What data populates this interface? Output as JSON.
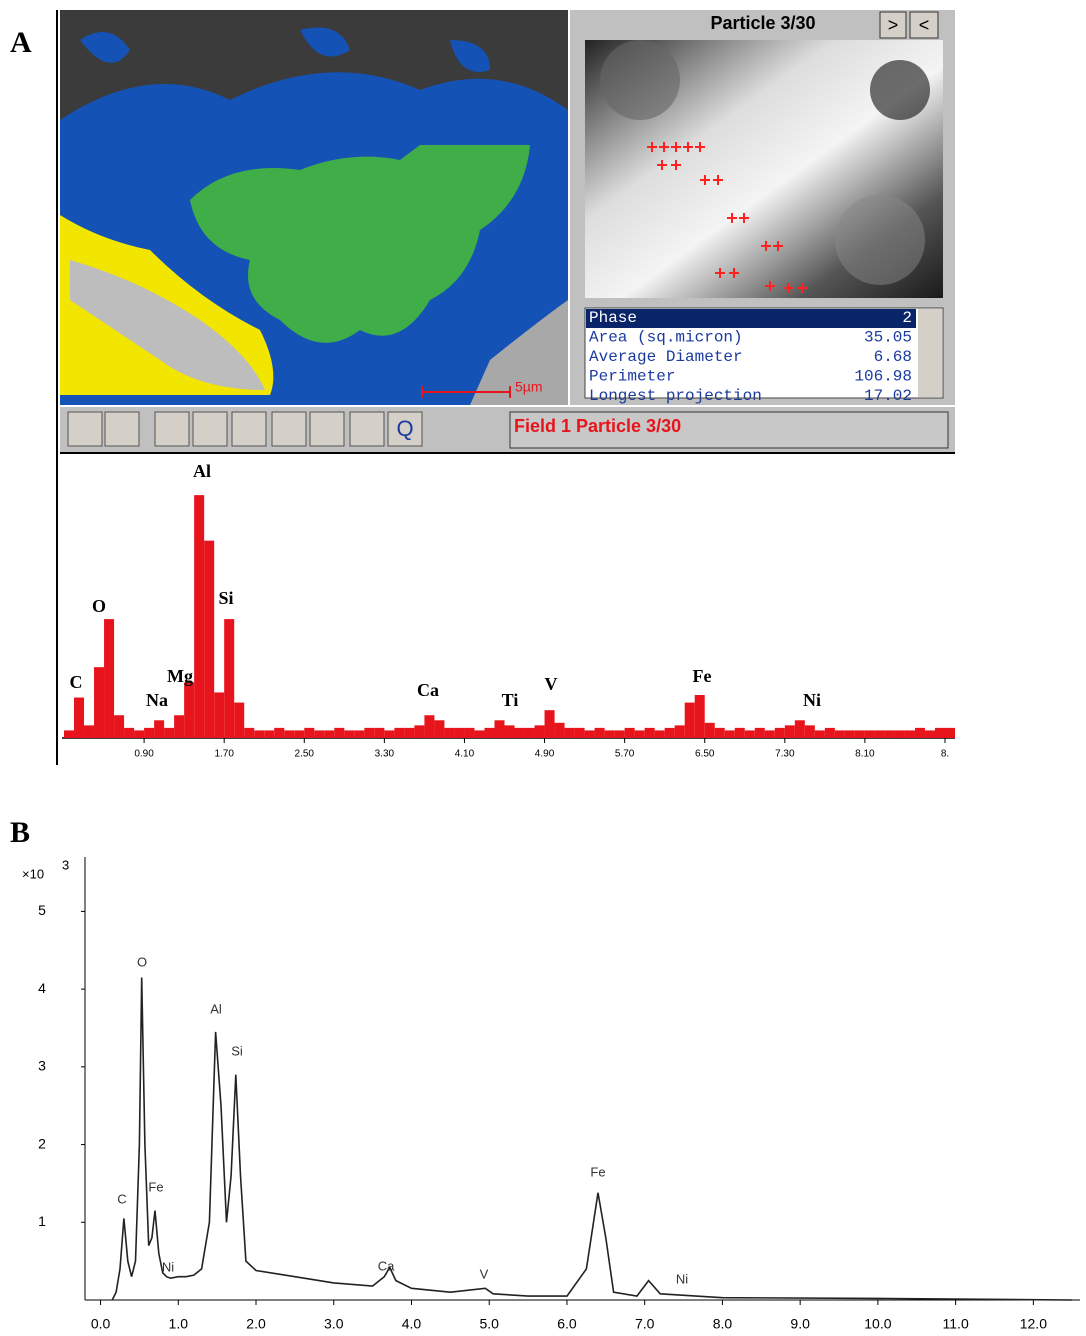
{
  "panel_labels": [
    "A",
    "B"
  ],
  "particle_view": {
    "title": "Particle 3/30",
    "next": ">",
    "prev": "<"
  },
  "properties": [
    [
      "Phase",
      "2"
    ],
    [
      "Area (sq.micron)",
      "35.05"
    ],
    [
      "Average Diameter",
      "6.68"
    ],
    [
      "Perimeter",
      "106.98"
    ],
    [
      "Longest projection",
      "17.02"
    ]
  ],
  "scale_bar": "5µm",
  "toolbar": {
    "query": "Q",
    "field_label": "Field 1 Particle 3/30"
  },
  "chart_data": [
    {
      "type": "histogram",
      "color": "#e8141c",
      "bins": [
        0.1,
        0.2,
        0.3,
        0.4,
        0.5,
        0.6,
        0.7,
        0.8,
        0.9,
        1.0,
        1.1,
        1.2,
        1.3,
        1.4,
        1.5,
        1.6,
        1.7,
        1.8,
        1.9,
        2.0,
        2.1,
        2.2,
        2.3,
        2.4,
        2.5,
        2.6,
        2.7,
        2.8,
        2.9,
        3.0,
        3.1,
        3.2,
        3.3,
        3.4,
        3.5,
        3.6,
        3.7,
        3.8,
        3.9,
        4.0,
        4.1,
        4.2,
        4.3,
        4.4,
        4.5,
        4.6,
        4.7,
        4.8,
        4.9,
        5.0,
        5.1,
        5.2,
        5.3,
        5.4,
        5.5,
        5.6,
        5.7,
        5.8,
        5.9,
        6.0,
        6.1,
        6.2,
        6.3,
        6.4,
        6.5,
        6.6,
        6.7,
        6.8,
        6.9,
        7.0,
        7.1,
        7.2,
        7.3,
        7.4,
        7.5,
        7.6,
        7.7,
        7.8,
        7.9,
        8.0,
        8.1,
        8.2,
        8.3,
        8.4,
        8.5,
        8.6,
        8.7,
        8.8,
        8.9,
        9.0
      ],
      "values": [
        3,
        16,
        5,
        28,
        47,
        9,
        4,
        3,
        4,
        7,
        4,
        9,
        22,
        96,
        78,
        18,
        47,
        14,
        4,
        3,
        3,
        4,
        3,
        3,
        4,
        3,
        3,
        4,
        3,
        3,
        4,
        4,
        3,
        4,
        4,
        5,
        9,
        7,
        4,
        4,
        4,
        3,
        4,
        7,
        5,
        4,
        4,
        5,
        11,
        6,
        4,
        4,
        3,
        4,
        3,
        3,
        4,
        3,
        4,
        3,
        4,
        5,
        14,
        17,
        6,
        4,
        3,
        4,
        3,
        4,
        3,
        4,
        5,
        7,
        5,
        3,
        4,
        3,
        3,
        3,
        3,
        3,
        3,
        3,
        3,
        4,
        3,
        4,
        4
      ],
      "xlim": [
        0.08,
        9.0
      ],
      "ylim": [
        0,
        100
      ],
      "xticks": [
        {
          "value": 0.9,
          "label": "0.90"
        },
        {
          "value": 1.7,
          "label": "1.70"
        },
        {
          "value": 2.5,
          "label": "2.50"
        },
        {
          "value": 3.3,
          "label": "3.30"
        },
        {
          "value": 4.1,
          "label": "4.10"
        },
        {
          "value": 4.9,
          "label": "4.90"
        },
        {
          "value": 5.7,
          "label": "5.70"
        },
        {
          "value": 6.5,
          "label": "6.50"
        },
        {
          "value": 7.3,
          "label": "7.30"
        },
        {
          "value": 8.1,
          "label": "8.10"
        },
        {
          "value": 8.9,
          "label": "8."
        }
      ],
      "annotations": [
        "C",
        "O",
        "Al",
        "Si",
        "Na",
        "Mg",
        "Ca",
        "Ti",
        "V",
        "Fe",
        "Ni"
      ]
    },
    {
      "type": "line",
      "color": "#222222",
      "x": [
        0.15,
        0.2,
        0.25,
        0.3,
        0.35,
        0.4,
        0.45,
        0.5,
        0.53,
        0.57,
        0.62,
        0.66,
        0.7,
        0.75,
        0.8,
        0.85,
        0.9,
        1.0,
        1.1,
        1.2,
        1.3,
        1.4,
        1.48,
        1.55,
        1.62,
        1.68,
        1.74,
        1.8,
        1.87,
        2.0,
        2.5,
        3.0,
        3.5,
        3.65,
        3.72,
        3.8,
        4.0,
        4.5,
        4.95,
        5.05,
        5.5,
        6.0,
        6.25,
        6.4,
        6.5,
        6.6,
        6.9,
        7.05,
        7.2,
        8.0,
        10.0,
        12.5
      ],
      "values": [
        0,
        0.1,
        0.4,
        1.05,
        0.5,
        0.3,
        0.5,
        2.0,
        4.15,
        2.0,
        0.7,
        0.8,
        1.15,
        0.6,
        0.35,
        0.3,
        0.28,
        0.3,
        0.3,
        0.32,
        0.4,
        1.0,
        3.45,
        2.5,
        1.0,
        1.6,
        2.9,
        1.6,
        0.5,
        0.38,
        0.3,
        0.22,
        0.18,
        0.3,
        0.42,
        0.25,
        0.15,
        0.1,
        0.15,
        0.08,
        0.05,
        0.05,
        0.4,
        1.38,
        0.8,
        0.1,
        0.05,
        0.25,
        0.08,
        0.03,
        0.02,
        0
      ],
      "xlim": [
        -0.2,
        12.6
      ],
      "ylim": [
        0,
        5.7
      ],
      "xticks": [
        {
          "value": 0,
          "label": "0.0"
        },
        {
          "value": 1,
          "label": "1.0"
        },
        {
          "value": 2,
          "label": "2.0"
        },
        {
          "value": 3,
          "label": "3.0"
        },
        {
          "value": 4,
          "label": "4.0"
        },
        {
          "value": 5,
          "label": "5.0"
        },
        {
          "value": 6,
          "label": "6.0"
        },
        {
          "value": 7,
          "label": "7.0"
        },
        {
          "value": 8,
          "label": "8.0"
        },
        {
          "value": 9,
          "label": "9.0"
        },
        {
          "value": 10,
          "label": "10.0"
        },
        {
          "value": 11,
          "label": "11.0"
        },
        {
          "value": 12,
          "label": "12.0"
        }
      ],
      "yticks": [
        1,
        2,
        3,
        4,
        5
      ],
      "y_unit": "×10",
      "y_unit_exp": "3",
      "annotations": [
        "O",
        "Al",
        "Si",
        "C",
        "Fe",
        "Ni",
        "Ca",
        "V",
        "Fe",
        "Ni"
      ]
    }
  ]
}
